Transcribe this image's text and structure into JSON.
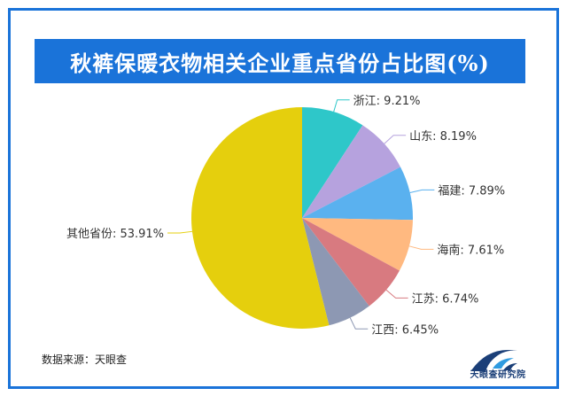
{
  "title": "秋裤保暖衣物相关企业重点省份占比图(%)",
  "source": "数据来源：天眼查",
  "logo": {
    "text": "天眼查研究院",
    "icon": "tianyancha-logo-icon"
  },
  "colors": {
    "frame": "#1a73d9",
    "title_bg": "#1a73d9",
    "title_text": "#ffffff"
  },
  "chart_data": {
    "type": "pie",
    "title": "秋裤保暖衣物相关企业重点省份占比图(%)",
    "start": "12 o'clock, clockwise",
    "slices": [
      {
        "label": "浙江",
        "value": 9.21,
        "display": "浙江: 9.21%",
        "color": "#2ec7c9"
      },
      {
        "label": "山东",
        "value": 8.19,
        "display": "山东: 8.19%",
        "color": "#b6a2de"
      },
      {
        "label": "福建",
        "value": 7.89,
        "display": "福建: 7.89%",
        "color": "#5ab1ef"
      },
      {
        "label": "海南",
        "value": 7.61,
        "display": "海南: 7.61%",
        "color": "#ffb980"
      },
      {
        "label": "江苏",
        "value": 6.74,
        "display": "江苏: 6.74%",
        "color": "#d87a80"
      },
      {
        "label": "江西",
        "value": 6.45,
        "display": "江西: 6.45%",
        "color": "#8d98b3"
      },
      {
        "label": "其他省份",
        "value": 53.91,
        "display": "其他省份: 53.91%",
        "color": "#e5cf0d"
      }
    ]
  }
}
